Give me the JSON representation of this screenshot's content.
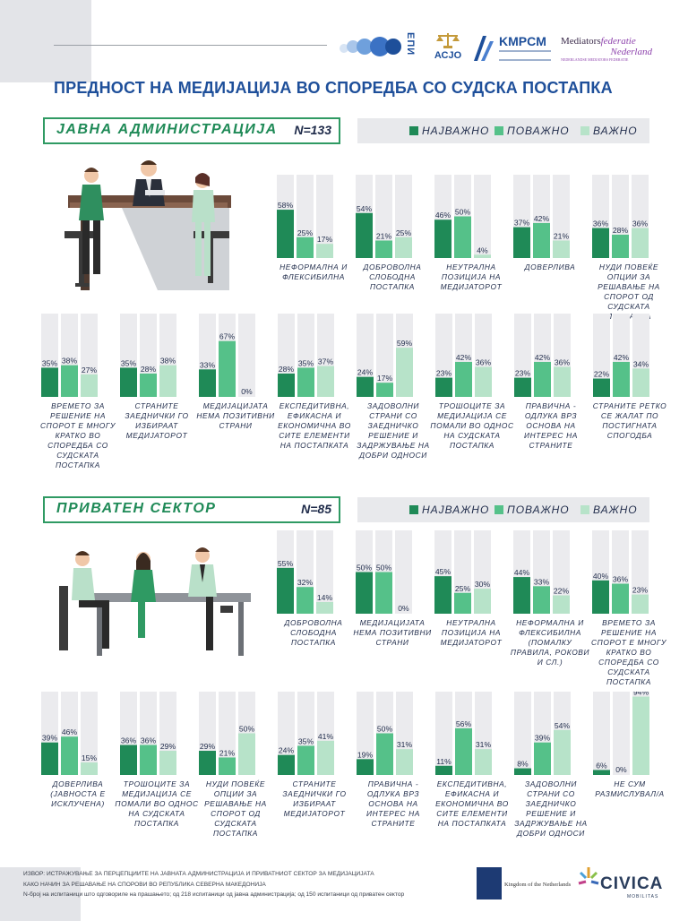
{
  "header": {
    "logos": {
      "epi": "ЕПИ",
      "acjo": "АСЈО",
      "kmpcm": "KMPCM",
      "mfn_line1a": "Mediators",
      "mfn_line1b": "federatie",
      "mfn_line2": "Nederland",
      "mfn_line3": "NEDERLANDSE MEDIATORS FEDERATIE"
    },
    "title": "ПРЕДНОСТ НА МЕДИЈАЦИЈА ВО СПОРЕДБА СО СУДСКА ПОСТАПКА"
  },
  "legend": {
    "items": [
      {
        "label": "НАЈВАЖНО",
        "color": "#1f8a57"
      },
      {
        "label": "ПОВАЖНО",
        "color": "#55c189"
      },
      {
        "label": "ВАЖНО",
        "color": "#b7e3c9"
      }
    ],
    "track_color": "#ebebee"
  },
  "sections": [
    {
      "title": "ЈАВНА АДМИНИСТРАЦИЈА",
      "n_label": "N=133"
    },
    {
      "title": "ПРИВАТЕН СЕКТОР",
      "n_label": "N=85"
    }
  ],
  "chart_data": [
    {
      "type": "bar",
      "title": "ЈАВНА АДМИНИСТРАЦИЈА",
      "subtitle": "N=133",
      "ylim": [
        0,
        100
      ],
      "series_names": [
        "НАЈВАЖНО",
        "ПОВАЖНО",
        "ВАЖНО"
      ],
      "groups": [
        {
          "label": "НЕФОРМАЛНА И ФЛЕКСИБИЛНА",
          "values": [
            58,
            25,
            17
          ]
        },
        {
          "label": "ДОБРОВОЛНА СЛОБОДНА ПОСТАПКА",
          "values": [
            54,
            21,
            25
          ]
        },
        {
          "label": "НЕУТРАЛНА ПОЗИЦИЈА НА МЕДИЈАТОРОТ",
          "values": [
            46,
            50,
            4
          ]
        },
        {
          "label": "ДОВЕРЛИВА",
          "values": [
            37,
            42,
            21
          ]
        },
        {
          "label": "НУДИ ПОВЕЌЕ ОПЦИИ ЗА РЕШАВАЊЕ НА СПОРОТ ОД СУДСКАТА ПОСТАПКА",
          "values": [
            36,
            28,
            36
          ]
        },
        {
          "label": "ВРЕМЕТО ЗА РЕШЕНИЕ НА СПОРОТ Е МНОГУ КРАТКО ВО СПОРЕДБА СО СУДСКАТА ПОСТАПКА",
          "values": [
            35,
            38,
            27
          ]
        },
        {
          "label": "СТРАНИТЕ ЗАЕДНИЧКИ ГО ИЗБИРААТ МЕДИЈАТОРОТ",
          "values": [
            35,
            28,
            38
          ]
        },
        {
          "label": "МЕДИЈАЦИЈАТА НЕМА ПОЗИТИВНИ СТРАНИ",
          "values": [
            33,
            67,
            0
          ]
        },
        {
          "label": "ЕКСПЕДИТИВНА, ЕФИКАСНА И ЕКОНОМИЧНА ВО СИТЕ ЕЛЕМЕНТИ НА ПОСТАПКАТА",
          "values": [
            28,
            35,
            37
          ]
        },
        {
          "label": "ЗАДОВОЛНИ СТРАНИ СО ЗАЕДНИЧКО РЕШЕНИЕ И ЗАДРЖУВАЊЕ НА ДОБРИ ОДНОСИ",
          "values": [
            24,
            17,
            59
          ]
        },
        {
          "label": "ТРОШОЦИТЕ ЗА МЕДИЈАЦИЈА СЕ ПОМАЛИ ВО ОДНОС НА СУДСКАТА ПОСТАПКА",
          "values": [
            23,
            42,
            36
          ]
        },
        {
          "label": "ПРАВИЧНА - ОДЛУКА ВРЗ ОСНОВА НА ИНТЕРЕС НА СТРАНИТЕ",
          "values": [
            23,
            42,
            36
          ]
        },
        {
          "label": "СТРАНИТЕ РЕТКО СЕ ЖАЛАТ ПО ПОСТИГНАТА СПОГОДБА",
          "values": [
            22,
            42,
            34
          ]
        }
      ]
    },
    {
      "type": "bar",
      "title": "ПРИВАТЕН СЕКТОР",
      "subtitle": "N=85",
      "ylim": [
        0,
        100
      ],
      "series_names": [
        "НАЈВАЖНО",
        "ПОВАЖНО",
        "ВАЖНО"
      ],
      "groups": [
        {
          "label": "ДОБРОВОЛНА СЛОБОДНА ПОСТАПКА",
          "values": [
            55,
            32,
            14
          ]
        },
        {
          "label": "МЕДИЈАЦИЈАТА НЕМА ПОЗИТИВНИ СТРАНИ",
          "values": [
            50,
            50,
            0
          ]
        },
        {
          "label": "НЕУТРАЛНА ПОЗИЦИЈА НА МЕДИЈАТОРОТ",
          "values": [
            45,
            25,
            30
          ]
        },
        {
          "label": "НЕФОРМАЛНА И ФЛЕКСИБИЛНА (ПОМАЛКУ ПРАВИЛА, РОКОВИ И СЛ.)",
          "values": [
            44,
            33,
            22
          ]
        },
        {
          "label": "ВРЕМЕТО ЗА РЕШЕНИЕ НА СПОРОТ Е МНОГУ КРАТКО ВО СПОРЕДБА СО СУДСКАТА ПОСТАПКА",
          "values": [
            40,
            36,
            23
          ]
        },
        {
          "label": "ДОВЕРЛИВА (ЈАВНОСТА Е ИСКЛУЧЕНА)",
          "values": [
            39,
            46,
            15
          ]
        },
        {
          "label": "ТРОШОЦИТЕ ЗА МЕДИЈАЦИЈА СЕ ПОМАЛИ ВО ОДНОС НА СУДСКАТА ПОСТАПКА",
          "values": [
            36,
            36,
            29
          ]
        },
        {
          "label": "НУДИ ПОВЕЌЕ ОПЦИИ ЗА РЕШАВАЊЕ НА СПОРОТ ОД СУДСКАТА ПОСТАПКА",
          "values": [
            29,
            21,
            50
          ]
        },
        {
          "label": "СТРАНИТЕ ЗАЕДНИЧКИ ГО ИЗБИРААТ МЕДИЈАТОРОТ",
          "values": [
            24,
            35,
            41
          ]
        },
        {
          "label": "ПРАВИЧНА - ОДЛУКА ВРЗ ОСНОВА НА ИНТЕРЕС НА СТРАНИТЕ",
          "values": [
            19,
            50,
            31
          ]
        },
        {
          "label": "ЕКСПЕДИТИВНА, ЕФИКАСНА И ЕКОНОМИЧНА ВО СИТЕ ЕЛЕМЕНТИ НА ПОСТАПКАТА",
          "values": [
            11,
            56,
            31
          ]
        },
        {
          "label": "ЗАДОВОЛНИ СТРАНИ СО ЗАЕДНИЧКО РЕШЕНИЕ И ЗАДРЖУВАЊЕ НА ДОБРИ ОДНОСИ",
          "values": [
            8,
            39,
            54
          ]
        },
        {
          "label": "НЕ СУМ РАЗМИСЛУВАЛ/А",
          "values": [
            6,
            0,
            94
          ]
        }
      ]
    }
  ],
  "footer": {
    "source_lines": [
      "ИЗВОР: ИСТРАЖУВАЊЕ ЗА ПЕРЦЕПЦИИТЕ НА ЈАВНАТА АДМИНИСТРАЦИЈА И ПРИВАТНИОТ СЕКТОР ЗА МЕДИЈАЦИЈАТА",
      "КАКО НАЧИН ЗА РЕШАВАЊЕ НА СПОРОВИ ВО РЕПУБЛИКА СЕВЕРНА МАКЕДОНИЈА",
      "N-број на испитаници што одговориле на прашањето; од 218 испитаници од јавна администрација; од 150 испитаници од приватен сектор"
    ],
    "nl_logo_text": "Kingdom of the Netherlands",
    "civica_text": "CIVICA",
    "civica_sub": "MOBILITAS"
  }
}
